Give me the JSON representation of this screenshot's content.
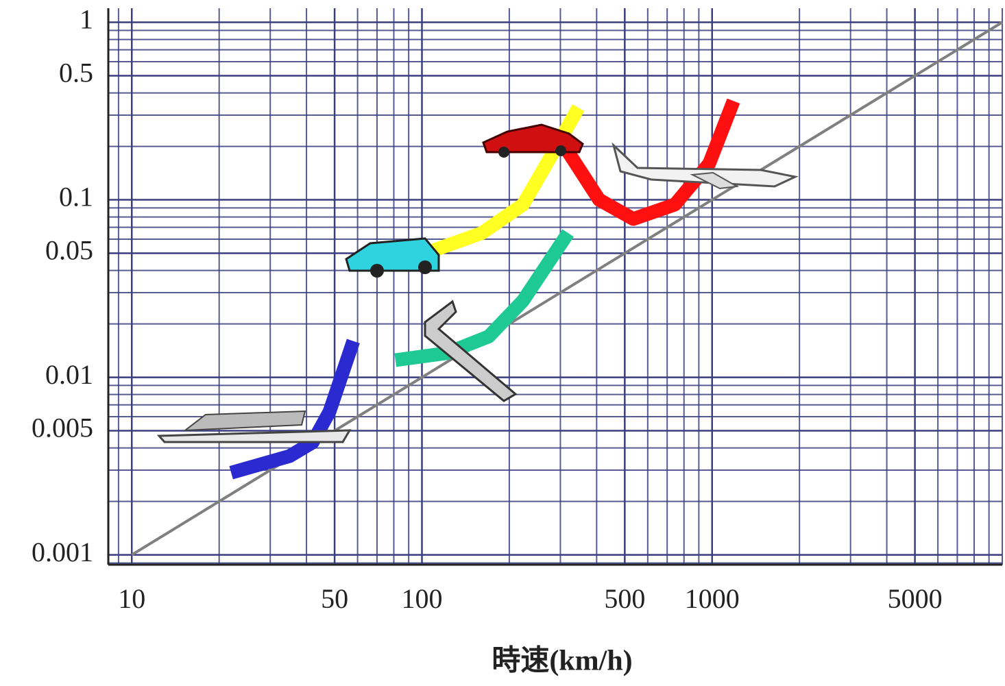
{
  "chart_data": {
    "type": "line",
    "x_label": "時速(km/h)",
    "log_x": true,
    "log_y": true,
    "grid": true,
    "minor_grid": true,
    "xlim": [
      8.3,
      10000
    ],
    "ylim": [
      0.00088,
      1.2
    ],
    "xticks": [
      10,
      50,
      100,
      500,
      1000,
      5000
    ],
    "yticks": [
      1,
      0.5,
      0.1,
      0.05,
      0.01,
      0.005,
      0.001
    ],
    "grid_color": "#3b3f80",
    "series": [
      {
        "color": "#808080",
        "x": [
          10,
          10000
        ],
        "values": [
          0.001,
          1
        ]
      },
      {
        "color": "#2a2ad0",
        "x": [
          22,
          35,
          42,
          48,
          58
        ],
        "values": [
          0.0029,
          0.0036,
          0.0043,
          0.0064,
          0.016
        ]
      },
      {
        "color": "#1fc993",
        "x": [
          81,
          122,
          170,
          223,
          319
        ],
        "values": [
          0.0125,
          0.0137,
          0.017,
          0.027,
          0.065
        ]
      },
      {
        "color": "#ffff22",
        "x": [
          110,
          161,
          223,
          278,
          346
        ],
        "values": [
          0.052,
          0.065,
          0.094,
          0.175,
          0.33
        ]
      },
      {
        "color": "#ff1010",
        "x": [
          310,
          408,
          535,
          744,
          977,
          1185
        ],
        "values": [
          0.2,
          0.1,
          0.078,
          0.094,
          0.16,
          0.36
        ]
      }
    ]
  }
}
